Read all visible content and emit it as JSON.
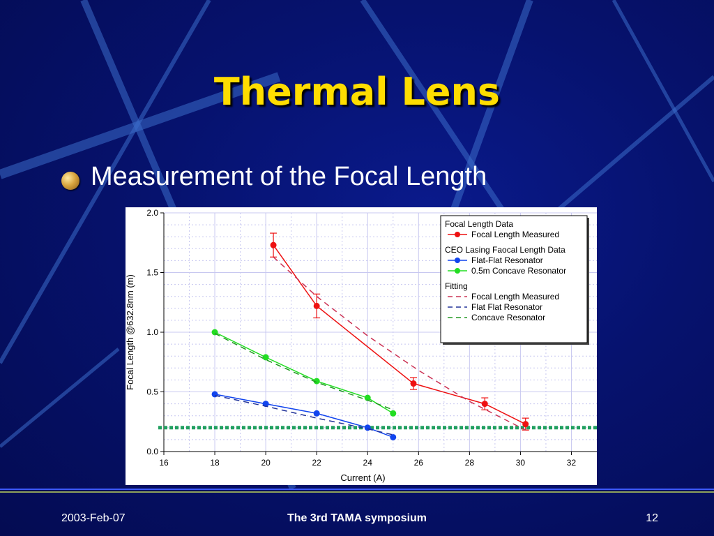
{
  "slide": {
    "title": "Thermal Lens",
    "bullet": "Measurement of the Focal Length"
  },
  "footer": {
    "date": "2003-Feb-07",
    "event": "The 3rd TAMA symposium",
    "page": "12"
  },
  "colors": {
    "title": "#ffdd00",
    "measured": "#ee1111",
    "flat_flat": "#1144ee",
    "concave": "#22dd22",
    "fit_measured": "#cc3355",
    "fit_flat": "#223399",
    "fit_concave": "#229922",
    "threshold": "#22a060"
  },
  "chart_data": {
    "type": "line",
    "xlabel": "Current (A)",
    "ylabel": "Focal Length @632.8nm (m)",
    "xlim": [
      16,
      33
    ],
    "ylim": [
      0,
      2.0
    ],
    "x_ticks": [
      "16",
      "18",
      "20",
      "22",
      "24",
      "26",
      "28",
      "30",
      "32"
    ],
    "y_ticks": [
      "0.0",
      "0.5",
      "1.0",
      "1.5",
      "2.0"
    ],
    "grid": true,
    "legend_position": "top-right",
    "legend_groups": [
      {
        "title": "Focal Length Data",
        "entries": [
          "Focal Length Measured"
        ]
      },
      {
        "title": "CEO Lasing Faocal Length Data",
        "entries": [
          "Flat-Flat Resonator",
          "0.5m Concave Resonator"
        ]
      },
      {
        "title": "Fitting",
        "entries": [
          "Focal Length Measured",
          "Flat Flat Resonator",
          "Concave Resonator"
        ]
      }
    ],
    "series": [
      {
        "name": "Focal Length Measured",
        "style": "solid-marker",
        "color_key": "measured",
        "x": [
          20.3,
          22.0,
          25.8,
          28.6,
          30.2
        ],
        "y": [
          1.73,
          1.22,
          0.57,
          0.4,
          0.23
        ],
        "error": [
          0.1,
          0.1,
          0.05,
          0.05,
          0.05
        ]
      },
      {
        "name": "Flat-Flat Resonator",
        "style": "solid-marker",
        "color_key": "flat_flat",
        "x": [
          18,
          20,
          22,
          24,
          25
        ],
        "y": [
          0.48,
          0.4,
          0.32,
          0.2,
          0.12
        ]
      },
      {
        "name": "0.5m Concave Resonator",
        "style": "solid-marker",
        "color_key": "concave",
        "x": [
          18,
          20,
          22,
          24,
          25
        ],
        "y": [
          1.0,
          0.79,
          0.59,
          0.45,
          0.32
        ]
      },
      {
        "name": "Focal Length Measured",
        "style": "dashed",
        "color_key": "fit_measured",
        "x": [
          20.3,
          22.0,
          24.0,
          26.0,
          28.0,
          30.2
        ],
        "y": [
          1.63,
          1.3,
          0.97,
          0.68,
          0.42,
          0.18
        ]
      },
      {
        "name": "Flat Flat Resonator",
        "style": "dashed",
        "color_key": "fit_flat",
        "x": [
          18,
          20,
          22,
          24,
          25
        ],
        "y": [
          0.47,
          0.38,
          0.28,
          0.19,
          0.14
        ]
      },
      {
        "name": "Concave Resonator",
        "style": "dashed",
        "color_key": "fit_concave",
        "x": [
          18,
          20,
          22,
          24,
          25
        ],
        "y": [
          0.99,
          0.77,
          0.58,
          0.43,
          0.35
        ]
      }
    ],
    "threshold_line": {
      "y": 0.2,
      "style": "dotted",
      "color_key": "threshold"
    }
  }
}
